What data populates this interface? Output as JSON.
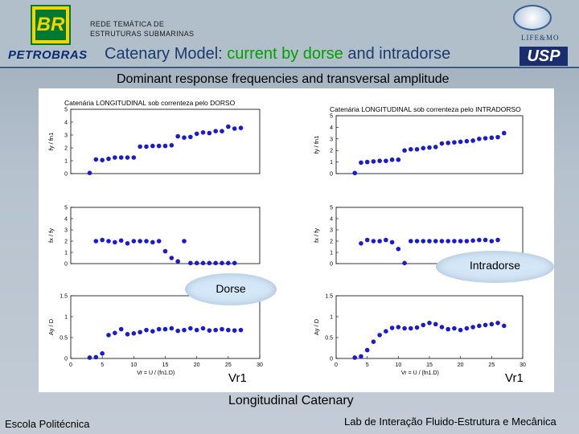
{
  "header": {
    "network_line1": "REDE TEMÁTICA DE",
    "network_line2": "ESTRUTURAS SUBMARINAS",
    "br_logo": "BR",
    "petrobras": "PETROBRAS",
    "lifemo": "LIFE&MO",
    "usp": "USP",
    "title_prefix": "Catenary Model: ",
    "title_highlight": "current by dorse",
    "title_suffix": " and intradorse"
  },
  "subtitle": "Dominant response frequencies and transversal amplitude",
  "callouts": {
    "intradorse": "Intradorse",
    "dorse": "Dorse"
  },
  "vr_labels": {
    "left": "Vr1",
    "right": "Vr1"
  },
  "footer": {
    "title": "Longitudinal Catenary",
    "left": "Escola Politécnica",
    "right": "Lab de Interação Fluido-Estrutura e Mecânica"
  },
  "colors": {
    "marker": "#1a1ad0",
    "accent": "#00a000",
    "title": "#1a3b6c"
  },
  "chart_data": [
    {
      "type": "scatter",
      "title": "Catenária LONGITUDINAL sob correnteza pelo DORSO",
      "ylabel": "fy / fn1",
      "xlim": [
        0,
        30
      ],
      "ylim": [
        0,
        5
      ],
      "yticks": [
        0,
        1,
        2,
        3,
        4,
        5
      ],
      "x": [
        3,
        4,
        5,
        6,
        7,
        8,
        9,
        10,
        11,
        12,
        13,
        14,
        15,
        16,
        17,
        18,
        19,
        20,
        21,
        22,
        23,
        24,
        25,
        26,
        27
      ],
      "y": [
        0.05,
        1.1,
        1.05,
        1.15,
        1.25,
        1.25,
        1.25,
        1.25,
        2.1,
        2.1,
        2.15,
        2.15,
        2.15,
        2.2,
        2.9,
        2.8,
        2.85,
        3.1,
        3.2,
        3.15,
        3.3,
        3.3,
        3.65,
        3.5,
        3.55
      ]
    },
    {
      "type": "scatter",
      "ylabel": "fx / fy",
      "xlim": [
        0,
        30
      ],
      "ylim": [
        0,
        5
      ],
      "yticks": [
        0,
        1,
        2,
        3,
        4,
        5
      ],
      "x": [
        4,
        5,
        6,
        7,
        8,
        9,
        10,
        11,
        12,
        13,
        14,
        15,
        16,
        17,
        18,
        19,
        20,
        21,
        22,
        23,
        24,
        25,
        26
      ],
      "y": [
        2.0,
        2.1,
        2.0,
        1.9,
        2.05,
        1.8,
        2.0,
        2.0,
        2.0,
        1.9,
        2.0,
        1.1,
        0.5,
        0.2,
        2.0,
        0.05,
        0.05,
        0.05,
        0.05,
        0.05,
        0.05,
        0.05,
        0.05
      ]
    },
    {
      "type": "scatter",
      "ylabel": "Ay / D",
      "xlabel": "Vr = U / (fn1.D)",
      "xlim": [
        0,
        30
      ],
      "ylim": [
        0,
        1.5
      ],
      "xticks": [
        0,
        5,
        10,
        15,
        20,
        25,
        30
      ],
      "yticks": [
        0,
        0.5,
        1,
        1.5
      ],
      "x": [
        3,
        4,
        5,
        6,
        7,
        8,
        9,
        10,
        11,
        12,
        13,
        14,
        15,
        16,
        17,
        18,
        19,
        20,
        21,
        22,
        23,
        24,
        25,
        26,
        27
      ],
      "y": [
        0.02,
        0.03,
        0.12,
        0.56,
        0.61,
        0.7,
        0.58,
        0.6,
        0.63,
        0.68,
        0.65,
        0.7,
        0.7,
        0.72,
        0.66,
        0.68,
        0.72,
        0.68,
        0.72,
        0.67,
        0.68,
        0.7,
        0.68,
        0.67,
        0.68
      ]
    },
    {
      "type": "scatter",
      "title": "Catenária LONGITUDINAL sob correnteza pelo INTRADORSO",
      "ylabel": "fy / fn1",
      "xlim": [
        0,
        30
      ],
      "ylim": [
        0,
        5
      ],
      "yticks": [
        0,
        1,
        2,
        3,
        4,
        5
      ],
      "x": [
        3,
        4,
        5,
        6,
        7,
        8,
        9,
        10,
        11,
        12,
        13,
        14,
        15,
        16,
        17,
        18,
        19,
        20,
        21,
        22,
        23,
        24,
        25,
        26,
        27
      ],
      "y": [
        0.05,
        0.95,
        1.0,
        1.05,
        1.1,
        1.1,
        1.2,
        1.2,
        2.0,
        2.1,
        2.1,
        2.2,
        2.25,
        2.3,
        2.6,
        2.65,
        2.7,
        2.75,
        2.8,
        2.85,
        3.0,
        3.05,
        3.1,
        3.15,
        3.5
      ]
    },
    {
      "type": "scatter",
      "ylabel": "fx / fy",
      "xlim": [
        0,
        30
      ],
      "ylim": [
        0,
        5
      ],
      "yticks": [
        0,
        1,
        2,
        3,
        4,
        5
      ],
      "x": [
        4,
        5,
        6,
        7,
        8,
        9,
        10,
        11,
        12,
        13,
        14,
        15,
        16,
        17,
        18,
        19,
        20,
        21,
        22,
        23,
        24,
        25,
        26
      ],
      "y": [
        1.8,
        2.1,
        2.0,
        2.0,
        2.1,
        1.9,
        1.3,
        0.05,
        2.0,
        2.0,
        2.0,
        2.0,
        2.0,
        2.0,
        2.0,
        2.0,
        2.0,
        2.0,
        2.05,
        2.1,
        2.1,
        2.0,
        2.1
      ]
    },
    {
      "type": "scatter",
      "ylabel": "Ay / D",
      "xlabel": "Vr = U / (fn1.D)",
      "xlim": [
        0,
        30
      ],
      "ylim": [
        0,
        1.5
      ],
      "xticks": [
        0,
        5,
        10,
        15,
        20,
        25,
        30
      ],
      "yticks": [
        0,
        0.5,
        1,
        1.5
      ],
      "x": [
        3,
        4,
        5,
        6,
        7,
        8,
        9,
        10,
        11,
        12,
        13,
        14,
        15,
        16,
        17,
        18,
        19,
        20,
        21,
        22,
        23,
        24,
        25,
        26,
        27
      ],
      "y": [
        0.02,
        0.05,
        0.2,
        0.4,
        0.56,
        0.65,
        0.73,
        0.75,
        0.72,
        0.72,
        0.74,
        0.8,
        0.85,
        0.82,
        0.75,
        0.7,
        0.72,
        0.68,
        0.72,
        0.75,
        0.78,
        0.8,
        0.82,
        0.85,
        0.78
      ]
    }
  ]
}
